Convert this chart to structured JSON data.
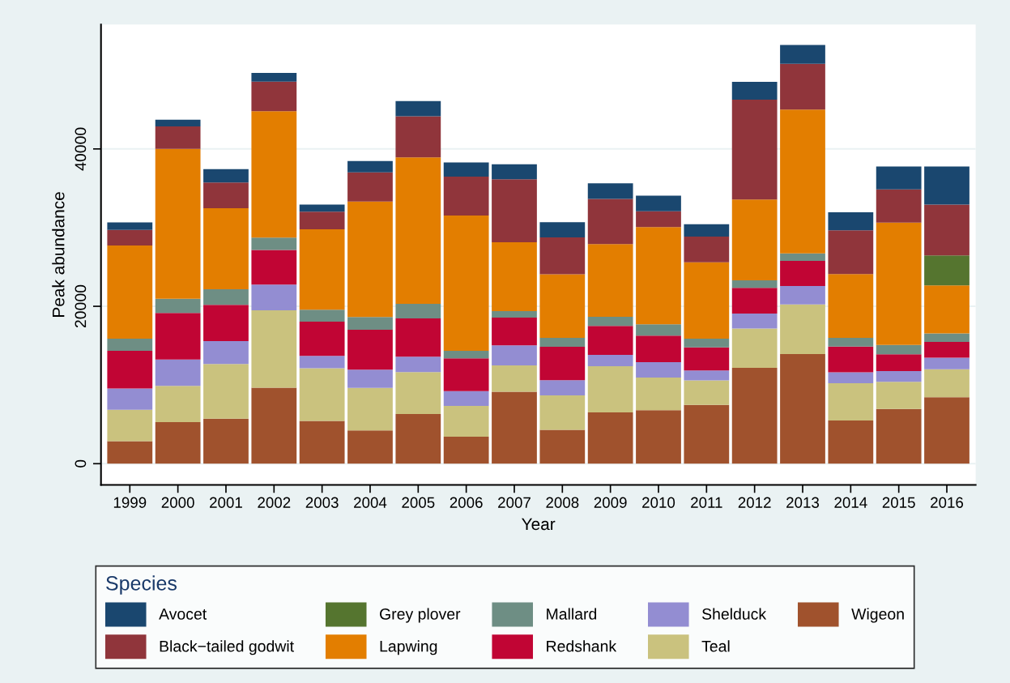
{
  "chart_data": {
    "type": "bar",
    "stacked": true,
    "xlabel": "Year",
    "ylabel": "Peak abundance",
    "legend_title": "Species",
    "categories": [
      "1999",
      "2000",
      "2001",
      "2002",
      "2003",
      "2004",
      "2005",
      "2006",
      "2007",
      "2008",
      "2009",
      "2010",
      "2011",
      "2012",
      "2013",
      "2014",
      "2015",
      "2016"
    ],
    "series": [
      {
        "name": "Wigeon",
        "color": "#a0522d",
        "values": [
          2870,
          5290,
          5730,
          9670,
          5440,
          4230,
          6320,
          3420,
          9150,
          4300,
          6510,
          6800,
          7460,
          12170,
          13930,
          5480,
          6950,
          8460
        ]
      },
      {
        "name": "Teal",
        "color": "#cac27e",
        "values": [
          3970,
          4600,
          6950,
          9810,
          6690,
          5400,
          5330,
          3930,
          3350,
          4370,
          5880,
          4150,
          3130,
          5000,
          6320,
          4740,
          3460,
          3530
        ]
      },
      {
        "name": "Shelduck",
        "color": "#938dd2",
        "values": [
          2720,
          3350,
          2900,
          3270,
          1580,
          2320,
          1950,
          1880,
          2540,
          1950,
          1430,
          1950,
          1250,
          1910,
          2320,
          1400,
          1360,
          1470
        ]
      },
      {
        "name": "Redshank",
        "color": "#c10534",
        "values": [
          4780,
          5920,
          4600,
          4410,
          4340,
          5070,
          4850,
          4150,
          3530,
          4230,
          3680,
          3380,
          2940,
          3270,
          3200,
          3270,
          2130,
          2020
        ]
      },
      {
        "name": "Mallard",
        "color": "#6e8e84",
        "values": [
          1540,
          1800,
          1990,
          1580,
          1510,
          1620,
          1870,
          960,
          810,
          1140,
          1180,
          1430,
          1100,
          960,
          960,
          1100,
          1180,
          1070
        ]
      },
      {
        "name": "Lapwing",
        "color": "#e37e00",
        "values": [
          11840,
          19050,
          10290,
          16060,
          10220,
          14670,
          18600,
          17200,
          8750,
          8090,
          9230,
          12350,
          9710,
          10260,
          18270,
          8120,
          15550,
          6100
        ]
      },
      {
        "name": "Grey plover",
        "color": "#55752f",
        "values": [
          0,
          0,
          0,
          0,
          0,
          0,
          0,
          0,
          0,
          0,
          0,
          0,
          0,
          0,
          0,
          0,
          0,
          3820
        ]
      },
      {
        "name": "Black−tailed godwit",
        "color": "#90353b",
        "values": [
          1990,
          2860,
          3270,
          3750,
          2240,
          3710,
          5220,
          4930,
          8010,
          4670,
          5730,
          2020,
          3270,
          12680,
          5810,
          5550,
          4230,
          6470
        ]
      },
      {
        "name": "Avocet",
        "color": "#1a476f",
        "values": [
          960,
          850,
          1690,
          1100,
          920,
          1430,
          1950,
          1800,
          1910,
          1950,
          1990,
          1990,
          1580,
          2280,
          2390,
          2280,
          2900,
          4820
        ]
      }
    ],
    "ylim": [
      -2700,
      55800
    ],
    "yticks": [
      0,
      20000,
      40000
    ],
    "grid": "y",
    "legend": "bottom"
  }
}
